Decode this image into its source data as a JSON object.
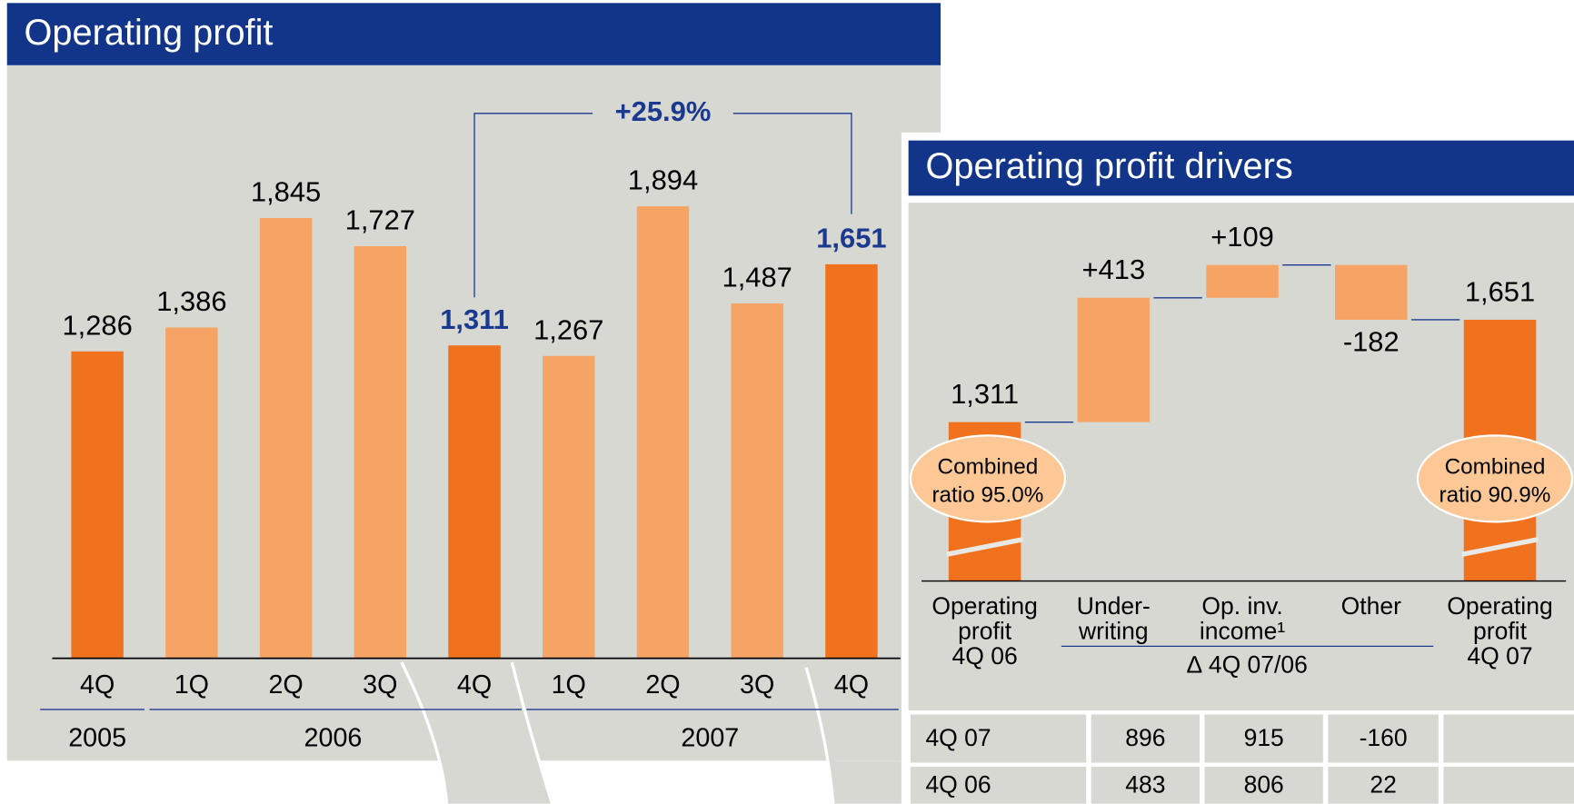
{
  "chart_data": [
    {
      "type": "bar",
      "title": "Operating profit",
      "categories": [
        "4Q",
        "1Q",
        "2Q",
        "3Q",
        "4Q",
        "1Q",
        "2Q",
        "3Q",
        "4Q"
      ],
      "x_groups": [
        {
          "name": "2005",
          "count": 1
        },
        {
          "name": "2006",
          "count": 4
        },
        {
          "name": "2007",
          "count": 4
        }
      ],
      "values": [
        1286,
        1386,
        1845,
        1727,
        1311,
        1267,
        1894,
        1487,
        1651
      ],
      "value_labels": [
        "1,286",
        "1,386",
        "1,845",
        "1,727",
        "1,311",
        "1,267",
        "1,894",
        "1,487",
        "1,651"
      ],
      "colors": [
        "#f0711e",
        "#f6a466",
        "#f6a466",
        "#f6a466",
        "#f0711e",
        "#f6a466",
        "#f6a466",
        "#f6a466",
        "#f0711e"
      ],
      "label_colors": [
        "#000000",
        "#000000",
        "#000000",
        "#000000",
        "#1a3a8f",
        "#000000",
        "#000000",
        "#000000",
        "#1a3a8f"
      ],
      "ylim": [
        0,
        2750
      ],
      "annotation": {
        "text": "+25.9%",
        "from": 4,
        "to": 8
      }
    },
    {
      "type": "waterfall",
      "title": "Operating profit drivers",
      "categories": [
        "Operating\nprofit\n4Q 06",
        "Under-\nwriting",
        "Op. inv.\nincome¹",
        "Other",
        "Operating\nprofit\n4Q 07"
      ],
      "values": [
        1311,
        413,
        109,
        -182,
        1651
      ],
      "value_labels": [
        "1,311",
        "+413",
        "+109",
        "-182",
        "1,651"
      ],
      "totals": [
        true,
        false,
        false,
        false,
        true
      ],
      "colors": [
        "#f0711e",
        "#f6a466",
        "#f6a466",
        "#f6a466",
        "#f0711e"
      ],
      "ylim": [
        0,
        2713
      ],
      "axis_break": true,
      "annotations": [
        {
          "text": "Combined\nratio 95.0%",
          "at": 0
        },
        {
          "text": "Combined\nratio 90.9%",
          "at": 4
        }
      ],
      "group": {
        "label": "∆ 4Q 07/06",
        "from": 1,
        "to": 3
      }
    }
  ],
  "table": {
    "rows": [
      [
        "4Q 07",
        896,
        915,
        -160
      ],
      [
        "4Q 06",
        483,
        806,
        22
      ]
    ]
  }
}
